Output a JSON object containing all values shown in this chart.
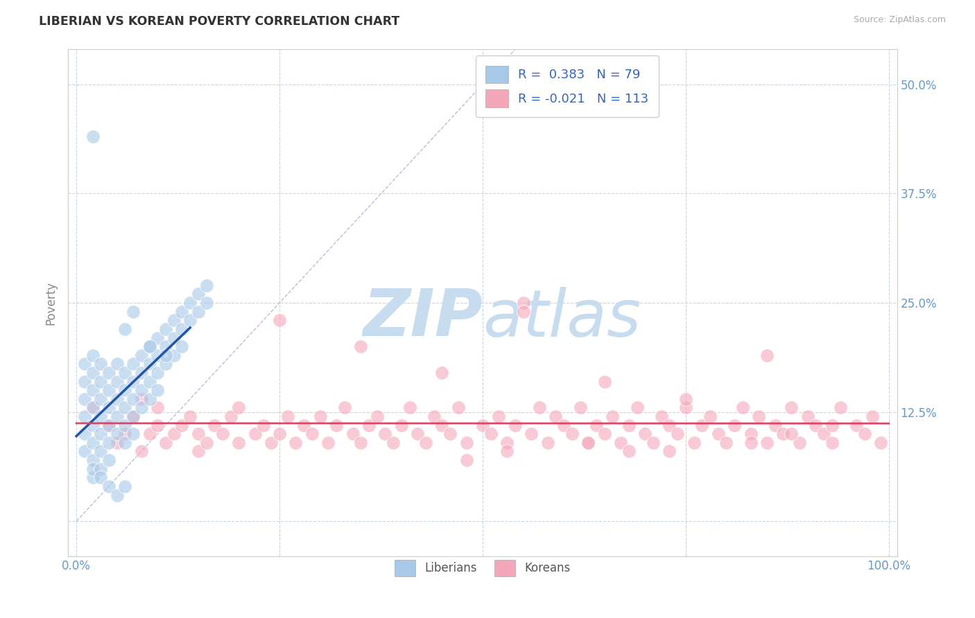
{
  "title": "LIBERIAN VS KOREAN POVERTY CORRELATION CHART",
  "source_text": "Source: ZipAtlas.com",
  "ylabel": "Poverty",
  "xlim": [
    -0.01,
    1.01
  ],
  "ylim": [
    -0.04,
    0.54
  ],
  "xticks": [
    0.0,
    0.25,
    0.5,
    0.75,
    1.0
  ],
  "xticklabels": [
    "0.0%",
    "",
    "",
    "",
    "100.0%"
  ],
  "yticks": [
    0.0,
    0.125,
    0.25,
    0.375,
    0.5
  ],
  "yticklabels_right": [
    "",
    "12.5%",
    "25.0%",
    "37.5%",
    "50.0%"
  ],
  "liberian_R": 0.383,
  "liberian_N": 79,
  "korean_R": -0.021,
  "korean_N": 113,
  "liberian_color": "#A8C8E8",
  "korean_color": "#F4A7B9",
  "liberian_line_color": "#2255AA",
  "korean_line_color": "#DD4466",
  "diagonal_color": "#AABBDD",
  "background_color": "#FFFFFF",
  "grid_color": "#BBCCDD",
  "title_color": "#333333",
  "axis_label_color": "#888888",
  "tick_label_color": "#6699CC",
  "legend_text_color": "#3366BB",
  "watermark_color": "#C8DCF0",
  "liberian_x": [
    0.01,
    0.01,
    0.01,
    0.01,
    0.01,
    0.01,
    0.02,
    0.02,
    0.02,
    0.02,
    0.02,
    0.02,
    0.02,
    0.02,
    0.02,
    0.03,
    0.03,
    0.03,
    0.03,
    0.03,
    0.03,
    0.03,
    0.04,
    0.04,
    0.04,
    0.04,
    0.04,
    0.04,
    0.05,
    0.05,
    0.05,
    0.05,
    0.05,
    0.06,
    0.06,
    0.06,
    0.06,
    0.06,
    0.07,
    0.07,
    0.07,
    0.07,
    0.07,
    0.08,
    0.08,
    0.08,
    0.08,
    0.09,
    0.09,
    0.09,
    0.09,
    0.1,
    0.1,
    0.1,
    0.1,
    0.11,
    0.11,
    0.11,
    0.12,
    0.12,
    0.12,
    0.13,
    0.13,
    0.13,
    0.14,
    0.14,
    0.15,
    0.15,
    0.16,
    0.16,
    0.06,
    0.07,
    0.09,
    0.11,
    0.03,
    0.04,
    0.05,
    0.06,
    0.02
  ],
  "liberian_y": [
    0.14,
    0.16,
    0.18,
    0.1,
    0.12,
    0.08,
    0.13,
    0.15,
    0.17,
    0.11,
    0.09,
    0.07,
    0.19,
    0.05,
    0.06,
    0.14,
    0.16,
    0.12,
    0.1,
    0.18,
    0.08,
    0.06,
    0.15,
    0.17,
    0.13,
    0.11,
    0.09,
    0.07,
    0.16,
    0.14,
    0.12,
    0.1,
    0.18,
    0.17,
    0.15,
    0.13,
    0.11,
    0.09,
    0.18,
    0.16,
    0.14,
    0.12,
    0.1,
    0.19,
    0.17,
    0.15,
    0.13,
    0.2,
    0.18,
    0.16,
    0.14,
    0.21,
    0.19,
    0.17,
    0.15,
    0.22,
    0.2,
    0.18,
    0.23,
    0.21,
    0.19,
    0.24,
    0.22,
    0.2,
    0.25,
    0.23,
    0.26,
    0.24,
    0.27,
    0.25,
    0.22,
    0.24,
    0.2,
    0.19,
    0.05,
    0.04,
    0.03,
    0.04,
    0.44
  ],
  "korean_x": [
    0.02,
    0.04,
    0.05,
    0.06,
    0.07,
    0.08,
    0.08,
    0.09,
    0.1,
    0.1,
    0.11,
    0.12,
    0.13,
    0.14,
    0.15,
    0.15,
    0.16,
    0.17,
    0.18,
    0.19,
    0.2,
    0.2,
    0.22,
    0.23,
    0.24,
    0.25,
    0.26,
    0.27,
    0.28,
    0.29,
    0.3,
    0.31,
    0.32,
    0.33,
    0.34,
    0.35,
    0.36,
    0.37,
    0.38,
    0.39,
    0.4,
    0.41,
    0.42,
    0.43,
    0.44,
    0.45,
    0.46,
    0.47,
    0.48,
    0.5,
    0.51,
    0.52,
    0.53,
    0.54,
    0.55,
    0.56,
    0.57,
    0.58,
    0.59,
    0.6,
    0.61,
    0.62,
    0.63,
    0.64,
    0.65,
    0.66,
    0.67,
    0.68,
    0.69,
    0.7,
    0.71,
    0.72,
    0.73,
    0.74,
    0.75,
    0.76,
    0.77,
    0.78,
    0.79,
    0.8,
    0.81,
    0.82,
    0.83,
    0.84,
    0.85,
    0.86,
    0.87,
    0.88,
    0.89,
    0.9,
    0.91,
    0.92,
    0.93,
    0.94,
    0.96,
    0.97,
    0.98,
    0.99,
    0.35,
    0.55,
    0.65,
    0.75,
    0.85,
    0.25,
    0.45,
    0.53,
    0.63,
    0.73,
    0.83,
    0.93,
    0.48,
    0.68,
    0.88
  ],
  "korean_y": [
    0.13,
    0.11,
    0.09,
    0.1,
    0.12,
    0.08,
    0.14,
    0.1,
    0.11,
    0.13,
    0.09,
    0.1,
    0.11,
    0.12,
    0.08,
    0.1,
    0.09,
    0.11,
    0.1,
    0.12,
    0.09,
    0.13,
    0.1,
    0.11,
    0.09,
    0.1,
    0.12,
    0.09,
    0.11,
    0.1,
    0.12,
    0.09,
    0.11,
    0.13,
    0.1,
    0.09,
    0.11,
    0.12,
    0.1,
    0.09,
    0.11,
    0.13,
    0.1,
    0.09,
    0.12,
    0.11,
    0.1,
    0.13,
    0.09,
    0.11,
    0.1,
    0.12,
    0.09,
    0.11,
    0.25,
    0.1,
    0.13,
    0.09,
    0.12,
    0.11,
    0.1,
    0.13,
    0.09,
    0.11,
    0.1,
    0.12,
    0.09,
    0.11,
    0.13,
    0.1,
    0.09,
    0.12,
    0.11,
    0.1,
    0.13,
    0.09,
    0.11,
    0.12,
    0.1,
    0.09,
    0.11,
    0.13,
    0.1,
    0.12,
    0.09,
    0.11,
    0.1,
    0.13,
    0.09,
    0.12,
    0.11,
    0.1,
    0.09,
    0.13,
    0.11,
    0.1,
    0.12,
    0.09,
    0.2,
    0.24,
    0.16,
    0.14,
    0.19,
    0.23,
    0.17,
    0.08,
    0.09,
    0.08,
    0.09,
    0.11,
    0.07,
    0.08,
    0.1
  ]
}
